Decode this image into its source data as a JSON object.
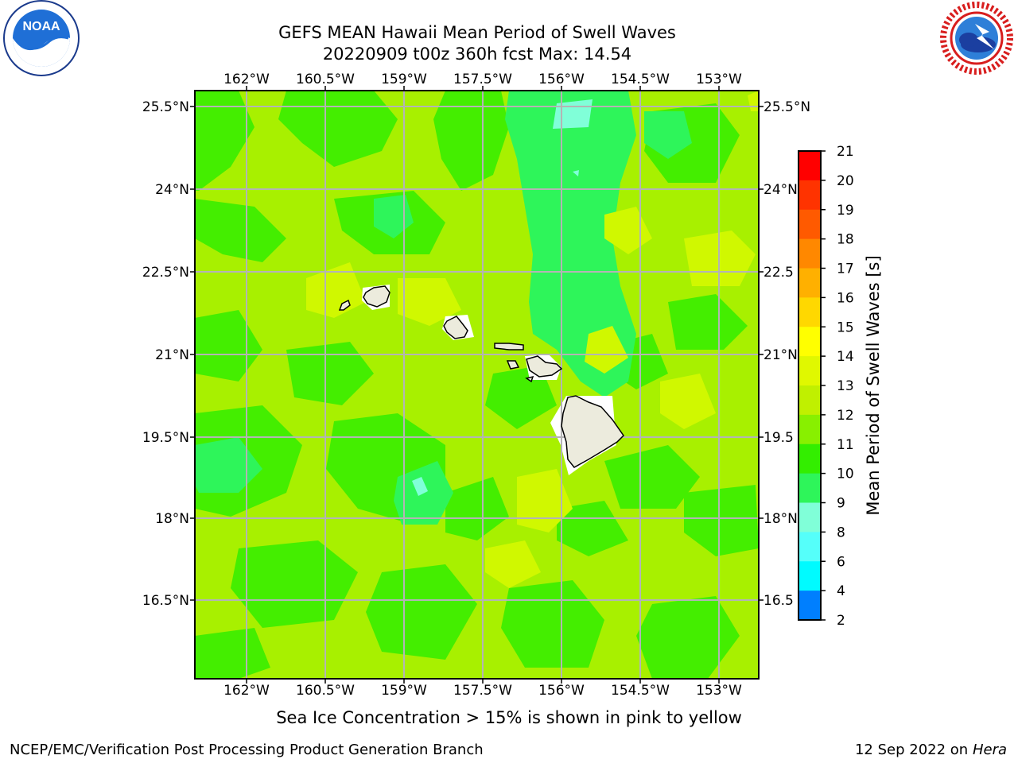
{
  "header": {
    "title_line1": "GEFS MEAN Hawaii Mean Period of Swell Waves",
    "title_line2": "20220909 t00z 360h fcst   Max: 14.54"
  },
  "map": {
    "lon_labels": [
      "162°W",
      "160.5°W",
      "159°W",
      "157.5°W",
      "156°W",
      "154.5°W",
      "153°W"
    ],
    "lat_labels": [
      "25.5°N",
      "24°N",
      "22.5°N",
      "21°N",
      "19.5°N",
      "18°N",
      "16.5°N"
    ],
    "right_lat_labels": [
      "25.5°N",
      "24°N",
      "22.5",
      "21°N",
      "19.5",
      "18°N",
      "16.5"
    ],
    "ocean_color": "#a8f000",
    "land_color": "#ecebdd"
  },
  "colorbar": {
    "label": "Mean Period of Swell Waves [s]",
    "ticks": [
      "21",
      "20",
      "19",
      "18",
      "17",
      "16",
      "15",
      "14",
      "13",
      "12",
      "11",
      "10",
      "9",
      "8",
      "6",
      "4",
      "2"
    ],
    "colors": [
      "#ff0000",
      "#ff3300",
      "#ff5a00",
      "#ff8800",
      "#ffb000",
      "#ffd800",
      "#ffff00",
      "#e0f800",
      "#c0f000",
      "#88f000",
      "#33ee00",
      "#2ef55a",
      "#80ffd8",
      "#55fffa",
      "#00fbff",
      "#007ffe",
      "#0000ff"
    ]
  },
  "footer": {
    "note": "Sea Ice Concentration > 15% is shown in pink to yellow",
    "credit": "NCEP/EMC/Verification Post Processing Product Generation Branch",
    "date": "12 Sep 2022 on",
    "machine": "Hera"
  },
  "logos": {
    "noaa_text": "NOAA",
    "nws_text": "NATIONAL WEATHER SERVICE"
  }
}
